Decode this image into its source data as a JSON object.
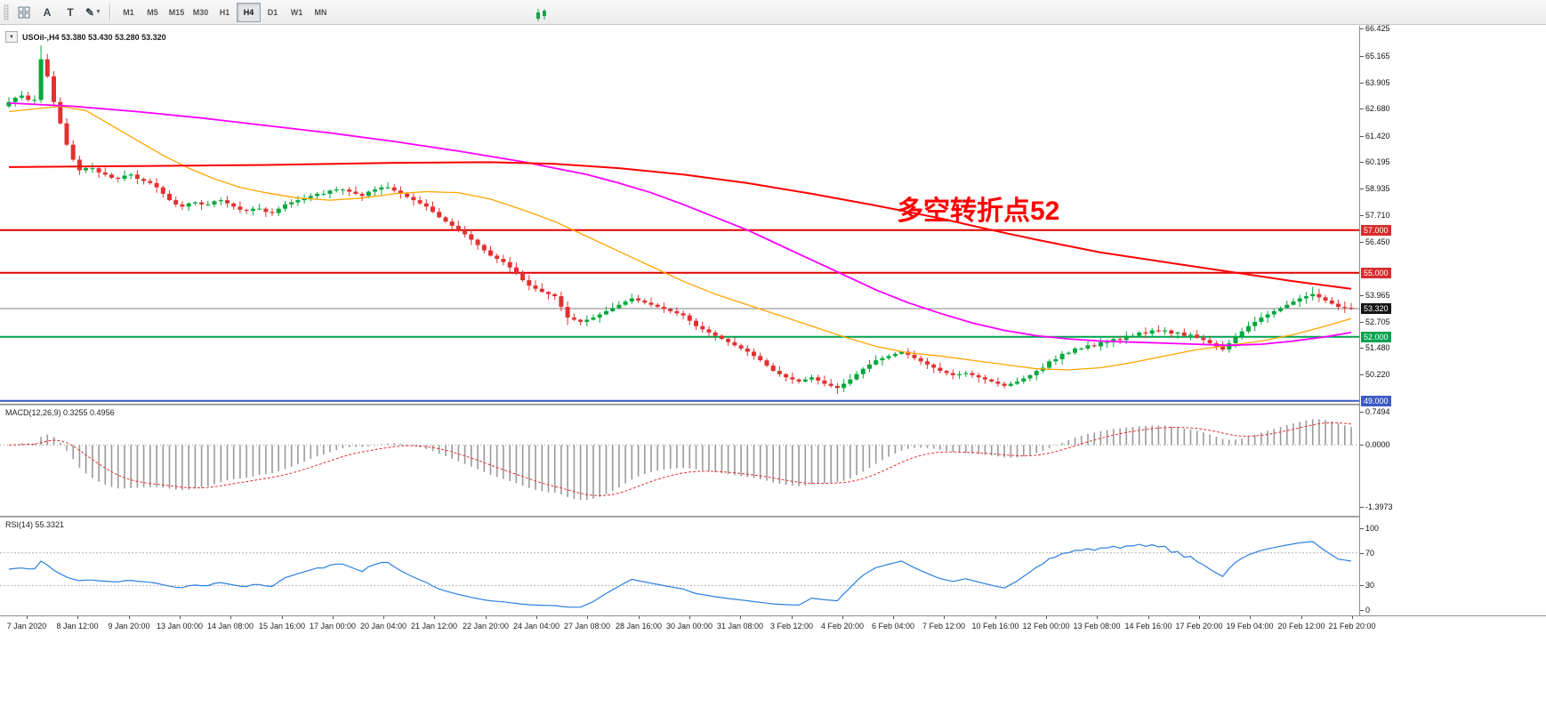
{
  "toolbar": {
    "tools": [
      {
        "name": "cursor-grid-icon"
      },
      {
        "label": "A"
      },
      {
        "label": "T"
      },
      {
        "name": "draw-tools-icon"
      }
    ],
    "timeframes": [
      "M1",
      "M5",
      "M15",
      "M30",
      "H1",
      "H4",
      "D1",
      "W1",
      "MN"
    ],
    "active_timeframe": "H4"
  },
  "price_panel": {
    "symbol_line": "USOil-,H4 53.380 53.430 53.280 53.320",
    "annotation": "多空转折点52",
    "annotation_color": "#FF0000",
    "scale_labels": [
      "66.425",
      "65.165",
      "63.905",
      "62.680",
      "61.420",
      "60.195",
      "58.935",
      "57.710",
      "56.450",
      "53.965",
      "52.705",
      "51.480",
      "50.220"
    ],
    "badges": [
      {
        "text": "57.000",
        "color": "#D92B2B",
        "value": 57.0
      },
      {
        "text": "55.000",
        "color": "#D92B2B",
        "value": 55.0
      },
      {
        "text": "53.320",
        "color": "#141414",
        "value": 53.32
      },
      {
        "text": "52.000",
        "color": "#00A24E",
        "value": 52.0
      },
      {
        "text": "49.000",
        "color": "#3C5BC4",
        "value": 49.0
      }
    ]
  },
  "macd_panel": {
    "title": "MACD(12,26,9) 0.3255 0.4956",
    "scale_labels": [
      {
        "text": "0.7494",
        "value": 0.7494
      },
      {
        "text": "0.0000",
        "value": 0.0
      },
      {
        "text": "-1.3973",
        "value": -1.3973
      }
    ]
  },
  "rsi_panel": {
    "title": "RSI(14) 55.3321",
    "scale_labels": [
      {
        "text": "100",
        "value": 100
      },
      {
        "text": "70",
        "value": 70
      },
      {
        "text": "30",
        "value": 30
      },
      {
        "text": "0",
        "value": 0
      }
    ]
  },
  "x_axis": [
    "7 Jan 2020",
    "8 Jan 12:00",
    "9 Jan 20:00",
    "13 Jan 00:00",
    "14 Jan 08:00",
    "15 Jan 16:00",
    "17 Jan 00:00",
    "20 Jan 04:00",
    "21 Jan 12:00",
    "22 Jan 20:00",
    "24 Jan 04:00",
    "27 Jan 08:00",
    "28 Jan 16:00",
    "30 Jan 00:00",
    "31 Jan 08:00",
    "3 Feb 12:00",
    "4 Feb 20:00",
    "6 Feb 04:00",
    "7 Feb 12:00",
    "10 Feb 16:00",
    "12 Feb 00:00",
    "13 Feb 08:00",
    "14 Feb 16:00",
    "17 Feb 20:00",
    "19 Feb 04:00",
    "20 Feb 12:00",
    "21 Feb 20:00"
  ],
  "chart_data": {
    "type": "candlestick+indicators",
    "symbol": "USOil-",
    "timeframe": "H4",
    "quote": {
      "open": "53.380",
      "high": "53.430",
      "low": "53.280",
      "close": "53.320"
    },
    "y_range": [
      48.8,
      66.57
    ],
    "up_color": "#00A83C",
    "down_color": "#E33030",
    "first_open": 62.8,
    "closes": [
      63.0,
      63.2,
      63.3,
      63.1,
      63.1,
      65.0,
      64.2,
      63.0,
      62.0,
      61.0,
      60.3,
      59.8,
      59.9,
      59.9,
      59.7,
      59.6,
      59.45,
      59.4,
      59.55,
      59.6,
      59.4,
      59.3,
      59.2,
      59.0,
      58.7,
      58.4,
      58.2,
      58.1,
      58.25,
      58.3,
      58.2,
      58.2,
      58.35,
      58.4,
      58.25,
      58.1,
      57.95,
      57.9,
      58.0,
      58.0,
      57.85,
      57.8,
      58.0,
      58.2,
      58.3,
      58.4,
      58.5,
      58.6,
      58.7,
      58.7,
      58.85,
      58.9,
      58.9,
      58.8,
      58.7,
      58.6,
      58.8,
      58.9,
      59.0,
      59.0,
      58.85,
      58.7,
      58.55,
      58.4,
      58.25,
      58.1,
      57.85,
      57.6,
      57.4,
      57.2,
      57.0,
      56.8,
      56.55,
      56.3,
      56.05,
      55.8,
      55.65,
      55.5,
      55.25,
      55.0,
      54.65,
      54.4,
      54.25,
      54.1,
      54.0,
      53.9,
      53.4,
      52.9,
      52.8,
      52.7,
      52.8,
      52.9,
      53.05,
      53.2,
      53.35,
      53.5,
      53.65,
      53.8,
      53.7,
      53.6,
      53.5,
      53.4,
      53.3,
      53.2,
      53.1,
      53.0,
      52.75,
      52.5,
      52.35,
      52.2,
      52.05,
      51.9,
      51.75,
      51.6,
      51.45,
      51.3,
      51.1,
      50.9,
      50.65,
      50.4,
      50.25,
      50.1,
      50.0,
      49.9,
      50.0,
      50.1,
      49.95,
      49.8,
      49.7,
      49.6,
      49.8,
      50.0,
      50.25,
      50.5,
      50.7,
      50.9,
      51.0,
      51.1,
      51.2,
      51.3,
      51.15,
      51.0,
      50.85,
      50.7,
      50.55,
      50.4,
      50.3,
      50.2,
      50.25,
      50.3,
      50.2,
      50.1,
      50.0,
      49.9,
      49.8,
      49.7,
      49.8,
      49.9,
      50.05,
      50.2,
      50.4,
      50.55,
      50.85,
      50.95,
      51.2,
      51.25,
      51.45,
      51.45,
      51.6,
      51.55,
      51.75,
      51.75,
      51.9,
      51.85,
      52.05,
      52.05,
      52.2,
      52.15,
      52.3,
      52.25,
      52.3,
      52.15,
      52.2,
      52.05,
      52.1,
      51.95,
      51.85,
      51.7,
      51.55,
      51.4,
      51.7,
      52.0,
      52.25,
      52.5,
      52.7,
      52.9,
      53.05,
      53.2,
      53.35,
      53.5,
      53.65,
      53.8,
      53.9,
      54.0,
      53.85,
      53.7,
      53.55,
      53.4,
      53.36,
      53.32
    ],
    "high_overrides": {
      "5": 65.65,
      "203": 54.35
    },
    "low_overrides": {
      "87": 52.55,
      "129": 49.32
    },
    "levels": [
      {
        "value": 57.0,
        "color": "#E00000",
        "width": 2
      },
      {
        "value": 55.0,
        "color": "#E00000",
        "width": 2
      },
      {
        "value": 52.0,
        "color": "#00A24E",
        "width": 2
      },
      {
        "value": 49.0,
        "color": "#3C5BC4",
        "width": 2
      }
    ],
    "current_price": 53.32,
    "moving_averages": [
      {
        "name": "ma-fast-orange",
        "color": "#FFA500",
        "width": 1.3,
        "points": [
          [
            0,
            62.55
          ],
          [
            8,
            62.8
          ],
          [
            12,
            62.6
          ],
          [
            16,
            61.9
          ],
          [
            20,
            61.2
          ],
          [
            24,
            60.5
          ],
          [
            28,
            59.9
          ],
          [
            32,
            59.4
          ],
          [
            36,
            59.0
          ],
          [
            40,
            58.75
          ],
          [
            45,
            58.5
          ],
          [
            50,
            58.4
          ],
          [
            55,
            58.5
          ],
          [
            60,
            58.7
          ],
          [
            65,
            58.8
          ],
          [
            70,
            58.75
          ],
          [
            75,
            58.45
          ],
          [
            80,
            57.95
          ],
          [
            85,
            57.4
          ],
          [
            90,
            56.7
          ],
          [
            95,
            56.0
          ],
          [
            100,
            55.3
          ],
          [
            105,
            54.6
          ],
          [
            110,
            54.0
          ],
          [
            115,
            53.5
          ],
          [
            120,
            53.0
          ],
          [
            125,
            52.5
          ],
          [
            130,
            52.0
          ],
          [
            135,
            51.55
          ],
          [
            140,
            51.25
          ],
          [
            145,
            51.1
          ],
          [
            150,
            50.9
          ],
          [
            155,
            50.7
          ],
          [
            160,
            50.5
          ],
          [
            165,
            50.45
          ],
          [
            170,
            50.55
          ],
          [
            175,
            50.8
          ],
          [
            180,
            51.1
          ],
          [
            185,
            51.4
          ],
          [
            190,
            51.6
          ],
          [
            195,
            51.8
          ],
          [
            200,
            52.1
          ],
          [
            205,
            52.5
          ],
          [
            209,
            52.85
          ]
        ]
      },
      {
        "name": "ma-mid-magenta",
        "color": "#FF00FF",
        "width": 1.8,
        "points": [
          [
            0,
            62.95
          ],
          [
            10,
            62.8
          ],
          [
            20,
            62.55
          ],
          [
            30,
            62.25
          ],
          [
            40,
            61.9
          ],
          [
            50,
            61.55
          ],
          [
            60,
            61.15
          ],
          [
            70,
            60.7
          ],
          [
            80,
            60.2
          ],
          [
            90,
            59.6
          ],
          [
            95,
            59.2
          ],
          [
            100,
            58.75
          ],
          [
            105,
            58.2
          ],
          [
            110,
            57.6
          ],
          [
            115,
            57.0
          ],
          [
            120,
            56.3
          ],
          [
            125,
            55.6
          ],
          [
            130,
            54.9
          ],
          [
            135,
            54.2
          ],
          [
            140,
            53.6
          ],
          [
            145,
            53.1
          ],
          [
            150,
            52.65
          ],
          [
            155,
            52.3
          ],
          [
            160,
            52.05
          ],
          [
            165,
            51.9
          ],
          [
            170,
            51.8
          ],
          [
            175,
            51.75
          ],
          [
            180,
            51.7
          ],
          [
            185,
            51.65
          ],
          [
            190,
            51.6
          ],
          [
            195,
            51.65
          ],
          [
            200,
            51.8
          ],
          [
            205,
            52.0
          ],
          [
            209,
            52.2
          ]
        ]
      },
      {
        "name": "ma-slow-red",
        "color": "#FF0000",
        "width": 2,
        "points": [
          [
            0,
            59.95
          ],
          [
            20,
            60.0
          ],
          [
            40,
            60.05
          ],
          [
            60,
            60.15
          ],
          [
            75,
            60.18
          ],
          [
            85,
            60.1
          ],
          [
            95,
            59.9
          ],
          [
            105,
            59.6
          ],
          [
            115,
            59.2
          ],
          [
            125,
            58.7
          ],
          [
            135,
            58.15
          ],
          [
            145,
            57.55
          ],
          [
            153,
            57.0
          ],
          [
            160,
            56.55
          ],
          [
            170,
            55.95
          ],
          [
            180,
            55.5
          ],
          [
            190,
            55.05
          ],
          [
            200,
            54.6
          ],
          [
            209,
            54.25
          ]
        ]
      }
    ],
    "macd": {
      "fast": 12,
      "slow": 26,
      "signal": 9,
      "scale_max": 0.7494,
      "scale_min": -1.3973,
      "values_shown": [
        "0.3255",
        "0.4956"
      ]
    },
    "rsi": {
      "period": 14,
      "levels": [
        70,
        30
      ],
      "value_shown": "55.3321",
      "color": "#2A7FDE"
    }
  }
}
